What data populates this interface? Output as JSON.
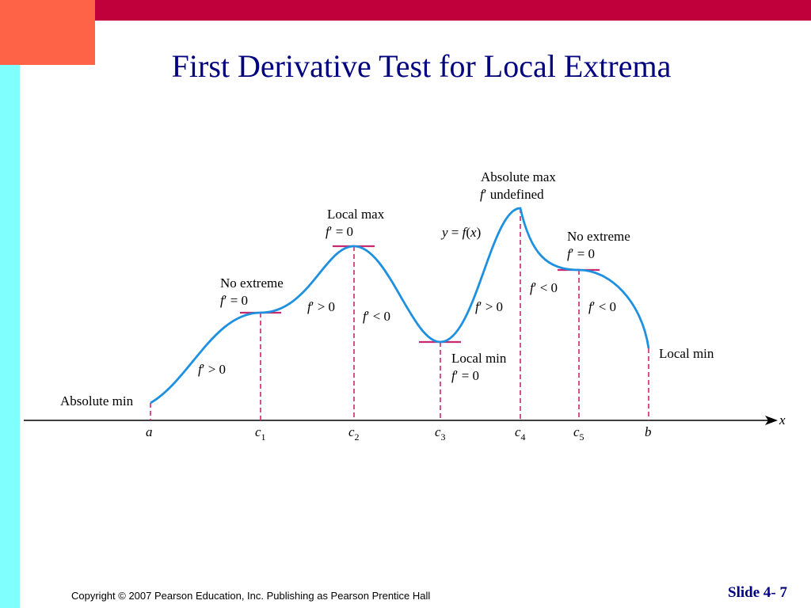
{
  "slide": {
    "title": "First Derivative Test for Local Extrema",
    "copyright": "Copyright © 2007 Pearson Education, Inc. Publishing as Pearson Prentice Hall",
    "slide_number": "Slide 4- 7",
    "colors": {
      "top_bar": "#c0003a",
      "corner_box": "#ff6347",
      "left_bar": "#80ffff",
      "title": "#000080",
      "curve": "#1e90e0",
      "markers": "#c8286e"
    }
  },
  "diagram": {
    "axis_label": "x",
    "curve_label": {
      "lead": "y",
      "eq": " = ",
      "fn": "f",
      "open": "(",
      "var": "x",
      "close": ")"
    },
    "ticks": {
      "a": "a",
      "c1": {
        "base": "c",
        "sub": "1"
      },
      "c2": {
        "base": "c",
        "sub": "2"
      },
      "c3": {
        "base": "c",
        "sub": "3"
      },
      "c4": {
        "base": "c",
        "sub": "4"
      },
      "c5": {
        "base": "c",
        "sub": "5"
      },
      "b": "b"
    },
    "points": {
      "a": {
        "name": "Absolute min"
      },
      "c1": {
        "name": "No extreme",
        "fn": "f",
        "cond": "′ = 0"
      },
      "c2": {
        "name": "Local max",
        "fn": "f",
        "cond": "′ = 0"
      },
      "c3": {
        "name": "Local min",
        "fn": "f",
        "cond": "′ = 0"
      },
      "c4": {
        "name": "Absolute max",
        "fn": "f",
        "cond": "′ undefined"
      },
      "c5": {
        "name": "No extreme",
        "fn": "f",
        "cond": "′ = 0"
      },
      "b": {
        "name": "Local min"
      }
    },
    "intervals": {
      "a_c1": {
        "fn": "f",
        "cond": "′ > 0"
      },
      "c1_c2": {
        "fn": "f",
        "cond": "′ > 0"
      },
      "c2_c3": {
        "fn": "f",
        "cond": "′ < 0"
      },
      "c3_c4": {
        "fn": "f",
        "cond": "′ > 0"
      },
      "c4_c5": {
        "fn": "f",
        "cond": "′ < 0"
      },
      "c5_b": {
        "fn": "f",
        "cond": "′ < 0"
      }
    }
  }
}
